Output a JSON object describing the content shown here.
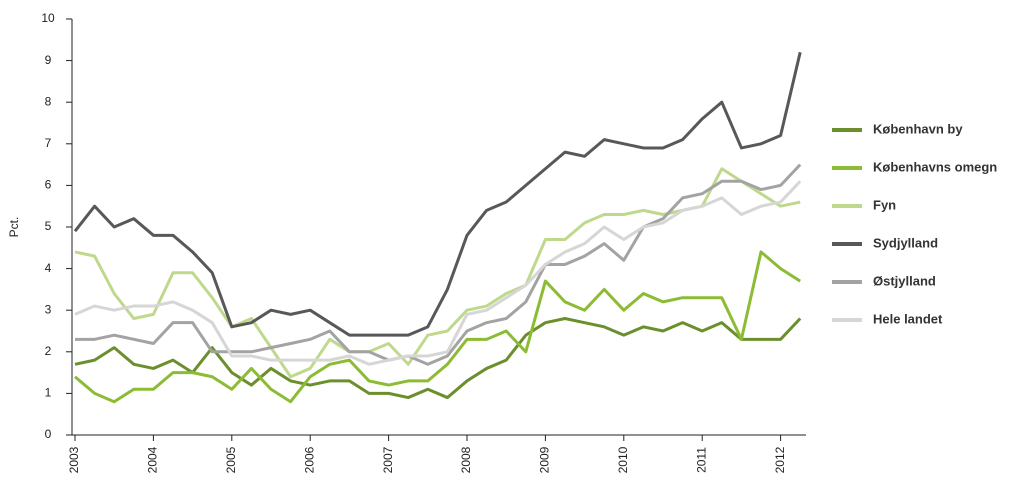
{
  "chart_data": {
    "type": "line",
    "y_label": "Pct.",
    "categories": [
      "2003",
      null,
      null,
      null,
      "2004",
      null,
      null,
      null,
      "2005",
      null,
      null,
      null,
      "2006",
      null,
      null,
      null,
      "2007",
      null,
      null,
      null,
      "2008",
      null,
      null,
      null,
      "2009",
      null,
      null,
      null,
      "2010",
      null,
      null,
      null,
      "2011",
      null,
      null,
      null,
      "2012",
      null
    ],
    "ylim": [
      0,
      10
    ],
    "yticks": [
      0,
      1,
      2,
      3,
      4,
      5,
      6,
      7,
      8,
      9,
      10
    ],
    "grid": false,
    "legend": "right",
    "series": [
      {
        "name": "København by",
        "color": "#6b8f2c",
        "values": [
          1.7,
          1.8,
          2.1,
          1.7,
          1.6,
          1.8,
          1.5,
          2.1,
          1.5,
          1.2,
          1.6,
          1.3,
          1.2,
          1.3,
          1.3,
          1.0,
          1.0,
          0.9,
          1.1,
          0.9,
          1.3,
          1.6,
          1.8,
          2.4,
          2.7,
          2.8,
          2.7,
          2.6,
          2.4,
          2.6,
          2.5,
          2.7,
          2.5,
          2.7,
          2.3,
          2.3,
          2.3,
          2.8
        ]
      },
      {
        "name": "Københavns omegn",
        "color": "#8cbb34",
        "values": [
          1.4,
          1.0,
          0.8,
          1.1,
          1.1,
          1.5,
          1.5,
          1.4,
          1.1,
          1.6,
          1.1,
          0.8,
          1.4,
          1.7,
          1.8,
          1.3,
          1.2,
          1.3,
          1.3,
          1.7,
          2.3,
          2.3,
          2.5,
          2.0,
          3.7,
          3.2,
          3.0,
          3.5,
          3.0,
          3.4,
          3.2,
          3.3,
          3.3,
          3.3,
          2.3,
          4.4,
          4.0,
          3.7
        ]
      },
      {
        "name": "Fyn",
        "color": "#bfd98c",
        "values": [
          4.4,
          4.3,
          3.4,
          2.8,
          2.9,
          3.9,
          3.9,
          3.3,
          2.6,
          2.8,
          2.1,
          1.4,
          1.6,
          2.3,
          2.0,
          2.0,
          2.2,
          1.7,
          2.4,
          2.5,
          3.0,
          3.1,
          3.4,
          3.6,
          4.7,
          4.7,
          5.1,
          5.3,
          5.3,
          5.4,
          5.3,
          5.4,
          5.5,
          6.4,
          6.1,
          5.8,
          5.5,
          5.6
        ]
      },
      {
        "name": "Sydjylland",
        "color": "#585858",
        "values": [
          4.9,
          5.5,
          5.0,
          5.2,
          4.8,
          4.8,
          4.4,
          3.9,
          2.6,
          2.7,
          3.0,
          2.9,
          3.0,
          2.7,
          2.4,
          2.4,
          2.4,
          2.4,
          2.6,
          3.5,
          4.8,
          5.4,
          5.6,
          6.0,
          6.4,
          6.8,
          6.7,
          7.1,
          7.0,
          6.9,
          6.9,
          7.1,
          7.6,
          8.0,
          6.9,
          7.0,
          7.2,
          9.2
        ]
      },
      {
        "name": "Østjylland",
        "color": "#a3a3a3",
        "values": [
          2.3,
          2.3,
          2.4,
          2.3,
          2.2,
          2.7,
          2.7,
          2.0,
          2.0,
          2.0,
          2.1,
          2.2,
          2.3,
          2.5,
          2.0,
          2.0,
          1.8,
          1.9,
          1.7,
          1.9,
          2.5,
          2.7,
          2.8,
          3.2,
          4.1,
          4.1,
          4.3,
          4.6,
          4.2,
          5.0,
          5.2,
          5.7,
          5.8,
          6.1,
          6.1,
          5.9,
          6.0,
          6.5
        ]
      },
      {
        "name": "Hele landet",
        "color": "#d6d6d6",
        "values": [
          2.9,
          3.1,
          3.0,
          3.1,
          3.1,
          3.2,
          3.0,
          2.7,
          1.9,
          1.9,
          1.8,
          1.8,
          1.8,
          1.8,
          1.9,
          1.7,
          1.8,
          1.9,
          1.9,
          2.0,
          2.9,
          3.0,
          3.3,
          3.6,
          4.1,
          4.4,
          4.6,
          5.0,
          4.7,
          5.0,
          5.1,
          5.4,
          5.5,
          5.7,
          5.3,
          5.5,
          5.6,
          6.1
        ]
      }
    ]
  }
}
